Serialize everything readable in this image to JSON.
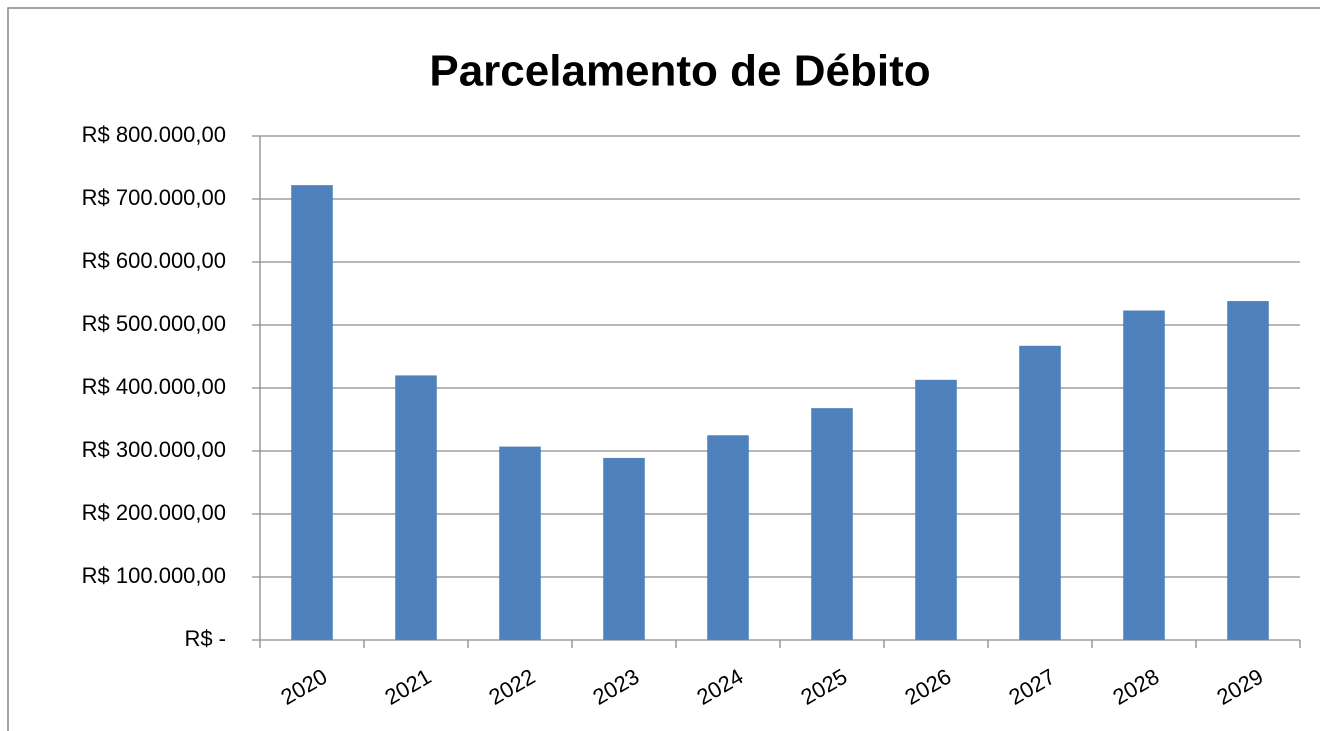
{
  "chart_data": {
    "type": "bar",
    "title": "Parcelamento de Débito",
    "categories": [
      "2020",
      "2021",
      "2022",
      "2023",
      "2024",
      "2025",
      "2026",
      "2027",
      "2028",
      "2029"
    ],
    "values": [
      722000,
      420000,
      307000,
      289000,
      325000,
      368000,
      413000,
      467000,
      523000,
      538000
    ],
    "color": "#4f81bd",
    "ylim": [
      0,
      800000
    ],
    "yticks": [
      {
        "value": 0,
        "label": "R$ -"
      },
      {
        "value": 100000,
        "label": "R$ 100.000,00"
      },
      {
        "value": 200000,
        "label": "R$ 200.000,00"
      },
      {
        "value": 300000,
        "label": "R$ 300.000,00"
      },
      {
        "value": 400000,
        "label": "R$ 400.000,00"
      },
      {
        "value": 500000,
        "label": "R$ 500.000,00"
      },
      {
        "value": 600000,
        "label": "R$ 600.000,00"
      },
      {
        "value": 700000,
        "label": "R$ 700.000,00"
      },
      {
        "value": 800000,
        "label": "R$ 800.000,00"
      }
    ],
    "grid": true
  }
}
